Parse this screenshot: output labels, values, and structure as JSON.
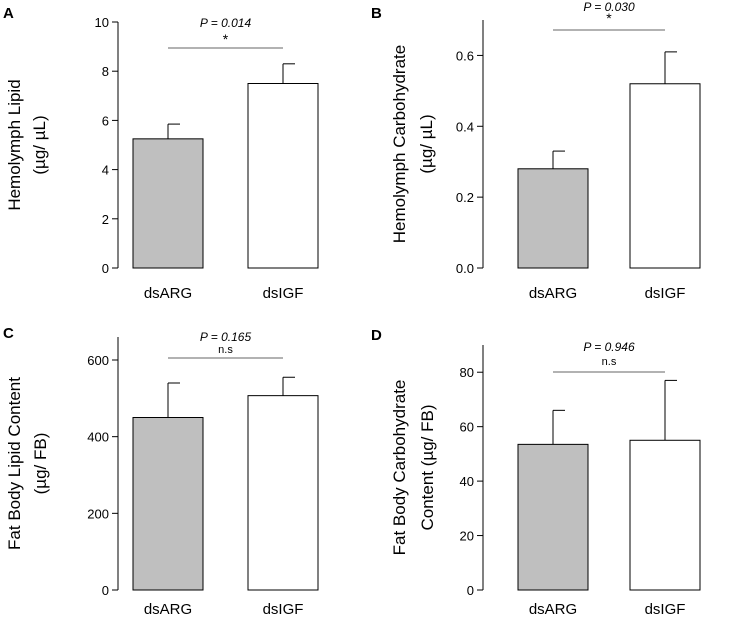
{
  "chart_data": [
    {
      "panel": "A",
      "type": "bar",
      "categories": [
        "dsARG",
        "dsIGF"
      ],
      "values": [
        5.25,
        7.5
      ],
      "errors": [
        0.6,
        0.8
      ],
      "bar_colors": [
        "#bfbfbf",
        "#ffffff"
      ],
      "ylabel_lines": [
        "Hemolymph Lipid",
        "(µg/ µL)"
      ],
      "ylim": [
        0,
        10
      ],
      "yticks": [
        0,
        2,
        4,
        6,
        8,
        10
      ],
      "p_value": "P = 0.014",
      "significance": "*"
    },
    {
      "panel": "B",
      "type": "bar",
      "categories": [
        "dsARG",
        "dsIGF"
      ],
      "values": [
        0.28,
        0.52
      ],
      "errors": [
        0.05,
        0.09
      ],
      "bar_colors": [
        "#bfbfbf",
        "#ffffff"
      ],
      "ylabel_lines": [
        "Hemolymph Carbohydrate",
        "(µg/ µL)"
      ],
      "ylim": [
        0,
        0.7
      ],
      "yticks": [
        0.0,
        0.2,
        0.4,
        0.6
      ],
      "tick_decimals": 1,
      "p_value": "P = 0.030",
      "significance": "*"
    },
    {
      "panel": "C",
      "type": "bar",
      "categories": [
        "dsARG",
        "dsIGF"
      ],
      "values": [
        450,
        507
      ],
      "errors": [
        90,
        48
      ],
      "bar_colors": [
        "#bfbfbf",
        "#ffffff"
      ],
      "ylabel_lines": [
        "Fat Body Lipid Content",
        "(µg/ FB)"
      ],
      "ylim": [
        0,
        660
      ],
      "yticks": [
        0,
        200,
        400,
        600
      ],
      "p_value": "P = 0.165",
      "significance": "n.s"
    },
    {
      "panel": "D",
      "type": "bar",
      "categories": [
        "dsARG",
        "dsIGF"
      ],
      "values": [
        53.5,
        55
      ],
      "errors": [
        12.5,
        22
      ],
      "bar_colors": [
        "#bfbfbf",
        "#ffffff"
      ],
      "ylabel_lines": [
        "Fat Body Carbohydrate",
        "Content (µg/ FB)"
      ],
      "ylim": [
        0,
        90
      ],
      "yticks": [
        0,
        20,
        40,
        60,
        80
      ],
      "p_value": "P = 0.946",
      "significance": "n.s"
    }
  ]
}
